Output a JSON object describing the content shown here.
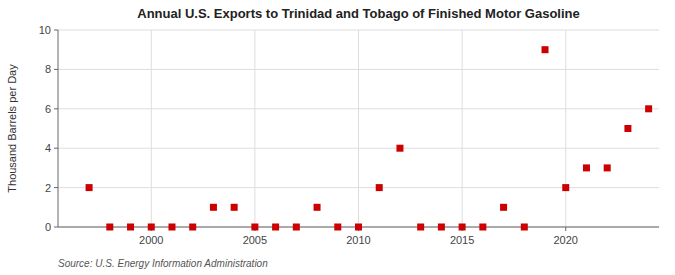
{
  "chart_data": {
    "type": "scatter",
    "title": "Annual U.S. Exports to Trinidad and Tobago of Finished Motor Gasoline",
    "ylabel": "Thousand Barrels per Day",
    "source": "Source: U.S. Energy Information Administration",
    "x": [
      1997,
      1998,
      1999,
      2000,
      2001,
      2002,
      2003,
      2004,
      2005,
      2006,
      2007,
      2008,
      2009,
      2010,
      2011,
      2012,
      2013,
      2014,
      2015,
      2016,
      2017,
      2018,
      2019,
      2020,
      2021,
      2022,
      2023,
      2024
    ],
    "values": [
      2,
      0,
      0,
      0,
      0,
      0,
      1,
      1,
      0,
      0,
      0,
      1,
      0,
      0,
      2,
      4,
      0,
      0,
      0,
      0,
      1,
      0,
      9,
      2,
      3,
      3,
      5,
      6
    ],
    "color": "#cc0000",
    "marker": "square",
    "xlim": [
      1995.5,
      2024.5
    ],
    "ylim": [
      0,
      10
    ],
    "xticks": [
      2000,
      2005,
      2010,
      2015,
      2020
    ],
    "yticks": [
      0,
      2,
      4,
      6,
      8,
      10
    ],
    "grid": true
  }
}
